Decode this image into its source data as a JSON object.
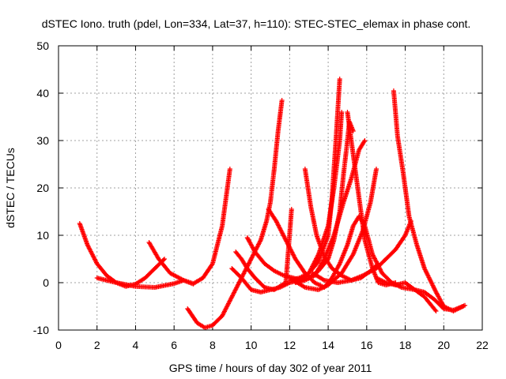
{
  "chart_data": {
    "type": "scatter",
    "title": "dSTEC Iono. truth (pdel, Lon=334, Lat=37, h=110): STEC-STEC_elemax in phase cont.",
    "xlabel": "GPS time / hours of day 302 of year 2011",
    "ylabel": "dSTEC  / TECUs",
    "xlim": [
      0,
      22
    ],
    "ylim": [
      -10,
      50
    ],
    "xticks": [
      0,
      2,
      4,
      6,
      8,
      10,
      12,
      14,
      16,
      18,
      20,
      22
    ],
    "yticks": [
      -10,
      0,
      10,
      20,
      30,
      40,
      50
    ],
    "grid": true,
    "marker": "+",
    "color": "#ff0000",
    "series": [
      {
        "points": [
          [
            1.1,
            12.5
          ],
          [
            1.5,
            8.0
          ],
          [
            2.0,
            4.0
          ],
          [
            2.5,
            1.5
          ],
          [
            3.0,
            0.0
          ],
          [
            3.5,
            -0.8
          ],
          [
            4.0,
            -0.3
          ],
          [
            4.5,
            1.0
          ],
          [
            5.0,
            3.0
          ],
          [
            5.5,
            5.0
          ]
        ]
      },
      {
        "points": [
          [
            2.0,
            1.0
          ],
          [
            3.0,
            0.0
          ],
          [
            4.0,
            -0.8
          ],
          [
            5.0,
            -1.0
          ],
          [
            6.0,
            -0.2
          ],
          [
            6.5,
            0.5
          ],
          [
            7.0,
            -0.2
          ],
          [
            7.5,
            1.0
          ],
          [
            8.0,
            4.0
          ],
          [
            8.5,
            12.0
          ],
          [
            8.9,
            24.0
          ]
        ]
      },
      {
        "points": [
          [
            4.7,
            8.5
          ],
          [
            5.2,
            5.0
          ],
          [
            5.8,
            2.0
          ],
          [
            6.5,
            0.5
          ],
          [
            7.0,
            -0.3
          ]
        ]
      },
      {
        "points": [
          [
            6.7,
            -5.5
          ],
          [
            7.2,
            -8.5
          ],
          [
            7.6,
            -9.5
          ],
          [
            8.0,
            -9.0
          ],
          [
            8.5,
            -7.0
          ],
          [
            9.0,
            -3.0
          ],
          [
            9.5,
            1.0
          ],
          [
            10.0,
            5.0
          ],
          [
            10.5,
            9.0
          ],
          [
            10.8,
            13.0
          ],
          [
            11.0,
            17.0
          ],
          [
            11.2,
            24.0
          ],
          [
            11.4,
            32.0
          ],
          [
            11.6,
            38.5
          ]
        ]
      },
      {
        "points": [
          [
            9.2,
            6.5
          ],
          [
            9.5,
            5.0
          ],
          [
            9.8,
            3.0
          ],
          [
            10.2,
            1.0
          ],
          [
            10.7,
            -1.0
          ],
          [
            11.2,
            -1.5
          ],
          [
            11.8,
            0.0
          ],
          [
            12.1,
            15.5
          ]
        ]
      },
      {
        "points": [
          [
            9.0,
            3.0
          ],
          [
            9.5,
            1.0
          ],
          [
            10.0,
            -1.5
          ],
          [
            10.5,
            -2.0
          ],
          [
            11.0,
            -1.5
          ],
          [
            11.5,
            -1.0
          ],
          [
            12.0,
            0.0
          ],
          [
            12.5,
            0.5
          ],
          [
            13.0,
            2.0
          ],
          [
            13.5,
            6.0
          ],
          [
            14.0,
            12.0
          ],
          [
            14.3,
            20.0
          ],
          [
            14.6,
            30.0
          ],
          [
            14.7,
            36.0
          ]
        ]
      },
      {
        "points": [
          [
            10.9,
            15.5
          ],
          [
            11.3,
            13.0
          ],
          [
            11.8,
            9.0
          ],
          [
            12.3,
            5.0
          ],
          [
            12.8,
            2.0
          ],
          [
            13.3,
            0.0
          ],
          [
            13.8,
            -1.0
          ],
          [
            14.2,
            1.0
          ],
          [
            14.6,
            4.0
          ],
          [
            15.0,
            8.0
          ],
          [
            15.3,
            12.0
          ],
          [
            15.6,
            14.0
          ],
          [
            15.9,
            12.0
          ],
          [
            16.3,
            6.0
          ],
          [
            16.8,
            2.0
          ],
          [
            17.3,
            0.0
          ],
          [
            17.8,
            -1.0
          ],
          [
            18.5,
            -1.5
          ],
          [
            19.0,
            -3.0
          ],
          [
            19.6,
            -6.0
          ]
        ]
      },
      {
        "points": [
          [
            9.8,
            9.5
          ],
          [
            10.2,
            6.5
          ],
          [
            10.7,
            4.0
          ],
          [
            11.2,
            2.5
          ],
          [
            11.7,
            1.5
          ],
          [
            12.2,
            1.0
          ],
          [
            12.6,
            0.5
          ],
          [
            13.0,
            1.0
          ],
          [
            13.5,
            2.5
          ],
          [
            14.0,
            5.0
          ],
          [
            14.3,
            9.0
          ],
          [
            14.6,
            15.0
          ],
          [
            14.8,
            23.0
          ],
          [
            15.0,
            30.0
          ],
          [
            15.1,
            34.0
          ],
          [
            15.3,
            32.0
          ]
        ]
      },
      {
        "points": [
          [
            12.8,
            24.0
          ],
          [
            13.1,
            16.0
          ],
          [
            13.4,
            10.0
          ],
          [
            13.8,
            5.5
          ],
          [
            14.2,
            3.0
          ],
          [
            14.7,
            1.5
          ],
          [
            15.2,
            0.5
          ],
          [
            15.7,
            1.0
          ],
          [
            16.2,
            2.5
          ],
          [
            16.6,
            4.0
          ]
        ]
      },
      {
        "points": [
          [
            12.0,
            0.5
          ],
          [
            12.5,
            1.0
          ],
          [
            13.0,
            2.0
          ],
          [
            13.5,
            4.5
          ],
          [
            14.0,
            10.0
          ],
          [
            14.2,
            18.0
          ],
          [
            14.4,
            30.0
          ],
          [
            14.6,
            43.0
          ]
        ]
      },
      {
        "points": [
          [
            12.3,
            0.0
          ],
          [
            12.8,
            0.5
          ],
          [
            13.3,
            1.5
          ],
          [
            13.8,
            5.0
          ],
          [
            14.3,
            10.0
          ],
          [
            14.8,
            17.0
          ],
          [
            15.2,
            22.0
          ],
          [
            15.6,
            28.0
          ],
          [
            15.9,
            30.0
          ]
        ]
      },
      {
        "points": [
          [
            15.0,
            36.0
          ],
          [
            15.3,
            27.0
          ],
          [
            15.6,
            18.0
          ],
          [
            15.9,
            9.0
          ],
          [
            16.3,
            3.0
          ],
          [
            16.6,
            0.0
          ],
          [
            17.0,
            -0.5
          ],
          [
            17.5,
            0.0
          ]
        ]
      },
      {
        "points": [
          [
            12.0,
            1.0
          ],
          [
            12.8,
            -1.0
          ],
          [
            13.5,
            -1.5
          ],
          [
            14.0,
            -0.5
          ],
          [
            14.7,
            2.0
          ],
          [
            15.3,
            6.0
          ],
          [
            15.8,
            11.0
          ],
          [
            16.2,
            17.0
          ],
          [
            16.5,
            24.0
          ]
        ]
      },
      {
        "points": [
          [
            13.2,
            2.0
          ],
          [
            13.8,
            0.5
          ],
          [
            14.5,
            0.0
          ],
          [
            15.2,
            0.5
          ],
          [
            15.8,
            1.5
          ],
          [
            16.5,
            3.0
          ],
          [
            17.0,
            5.0
          ],
          [
            17.5,
            7.0
          ],
          [
            18.0,
            10.0
          ],
          [
            18.3,
            13.0
          ]
        ]
      },
      {
        "points": [
          [
            17.4,
            40.5
          ],
          [
            17.6,
            31.0
          ],
          [
            17.9,
            23.0
          ],
          [
            18.2,
            14.0
          ],
          [
            18.6,
            8.0
          ],
          [
            19.0,
            3.0
          ],
          [
            19.6,
            -2.0
          ],
          [
            20.0,
            -5.0
          ],
          [
            20.5,
            -6.0
          ],
          [
            21.0,
            -5.0
          ]
        ]
      },
      {
        "points": [
          [
            16.5,
            1.0
          ],
          [
            17.0,
            0.0
          ],
          [
            17.5,
            -0.5
          ],
          [
            18.0,
            0.0
          ],
          [
            18.5,
            -1.5
          ],
          [
            19.0,
            -2.0
          ],
          [
            19.5,
            -3.5
          ],
          [
            20.0,
            -5.5
          ],
          [
            20.5,
            -5.8
          ],
          [
            21.1,
            -4.8
          ]
        ]
      }
    ]
  }
}
